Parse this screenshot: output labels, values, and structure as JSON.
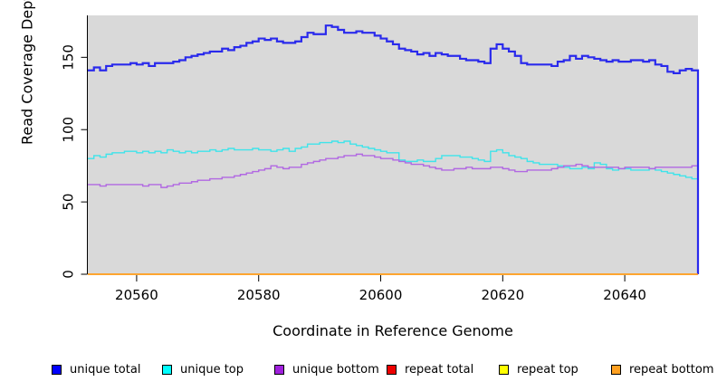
{
  "figure": {
    "xlabel": "Coordinate in Reference Genome",
    "ylabel": "Read Coverage Depth"
  },
  "axes": {
    "x_ticks": [
      20560,
      20580,
      20600,
      20620,
      20640
    ],
    "y_ticks": [
      0,
      50,
      100,
      150
    ],
    "plot_bg": "#d9d9d9",
    "axis_color": "#000000"
  },
  "legend": [
    {
      "label": "unique total",
      "color": "#0000ff"
    },
    {
      "label": "unique top",
      "color": "#00ffff"
    },
    {
      "label": "unique bottom",
      "color": "#a020dd"
    },
    {
      "label": "repeat total",
      "color": "#ee0000"
    },
    {
      "label": "repeat top",
      "color": "#ffff00"
    },
    {
      "label": "repeat bottom",
      "color": "#ffa020"
    }
  ],
  "chart_data": {
    "type": "line",
    "step": true,
    "title": "",
    "xlabel": "Coordinate in Reference Genome",
    "ylabel": "Read Coverage Depth",
    "xlim": [
      20552,
      20652
    ],
    "ylim": [
      0,
      179
    ],
    "grid": false,
    "legend_position": "bottom",
    "x_start": 20552,
    "x_step": 1,
    "series": [
      {
        "name": "unique total",
        "color": "#2a2aec",
        "width": 2.2,
        "zindex": 4,
        "end_drop": true,
        "values": [
          141,
          143,
          141,
          144,
          145,
          145,
          145,
          146,
          145,
          146,
          144,
          146,
          146,
          146,
          147,
          148,
          150,
          151,
          152,
          153,
          154,
          154,
          156,
          155,
          157,
          158,
          160,
          161,
          163,
          162,
          163,
          161,
          160,
          160,
          161,
          164,
          167,
          166,
          166,
          172,
          171,
          169,
          167,
          167,
          168,
          167,
          167,
          165,
          163,
          161,
          159,
          156,
          155,
          154,
          152,
          153,
          151,
          153,
          152,
          151,
          151,
          149,
          148,
          148,
          147,
          146,
          156,
          159,
          156,
          154,
          151,
          146,
          145,
          145,
          145,
          145,
          144,
          147,
          148,
          151,
          149,
          151,
          150,
          149,
          148,
          147,
          148,
          147,
          147,
          148,
          148,
          147,
          148,
          145,
          144,
          140,
          139,
          141,
          142,
          141
        ]
      },
      {
        "name": "unique top",
        "color": "#3fe4ea",
        "width": 1.4,
        "zindex": 2,
        "end_drop": false,
        "values": [
          80,
          82,
          81,
          83,
          84,
          84,
          85,
          85,
          84,
          85,
          84,
          85,
          84,
          86,
          85,
          84,
          85,
          84,
          85,
          85,
          86,
          85,
          86,
          87,
          86,
          86,
          86,
          87,
          86,
          86,
          85,
          86,
          87,
          85,
          87,
          88,
          90,
          90,
          91,
          91,
          92,
          91,
          92,
          90,
          89,
          88,
          87,
          86,
          85,
          84,
          84,
          79,
          78,
          78,
          79,
          78,
          78,
          80,
          82,
          82,
          82,
          81,
          81,
          80,
          79,
          78,
          85,
          86,
          84,
          82,
          81,
          80,
          78,
          77,
          76,
          76,
          76,
          75,
          74,
          73,
          73,
          74,
          73,
          77,
          76,
          73,
          72,
          73,
          73,
          72,
          72,
          72,
          73,
          72,
          71,
          70,
          69,
          68,
          67,
          66
        ]
      },
      {
        "name": "unique bottom",
        "color": "#b168e2",
        "width": 1.4,
        "zindex": 3,
        "end_drop": false,
        "values": [
          62,
          62,
          61,
          62,
          62,
          62,
          62,
          62,
          62,
          61,
          62,
          62,
          60,
          61,
          62,
          63,
          63,
          64,
          65,
          65,
          66,
          66,
          67,
          67,
          68,
          69,
          70,
          71,
          72,
          73,
          75,
          74,
          73,
          74,
          74,
          76,
          77,
          78,
          79,
          80,
          80,
          81,
          82,
          82,
          83,
          82,
          82,
          81,
          80,
          80,
          79,
          78,
          77,
          76,
          76,
          75,
          74,
          73,
          72,
          72,
          73,
          73,
          74,
          73,
          73,
          73,
          74,
          74,
          73,
          72,
          71,
          71,
          72,
          72,
          72,
          72,
          73,
          74,
          75,
          75,
          76,
          75,
          74,
          74,
          74,
          74,
          74,
          73,
          74,
          74,
          74,
          74,
          73,
          74,
          74,
          74,
          74,
          74,
          74,
          75
        ]
      },
      {
        "name": "repeat total",
        "color": "#ee0000",
        "width": 1.6,
        "zindex": 0,
        "constant": 0
      },
      {
        "name": "repeat top",
        "color": "#ffff00",
        "width": 1.6,
        "zindex": 1,
        "constant": 0
      },
      {
        "name": "repeat bottom",
        "color": "#ff9d2d",
        "width": 1.6,
        "zindex": 5,
        "constant": 0
      }
    ]
  }
}
